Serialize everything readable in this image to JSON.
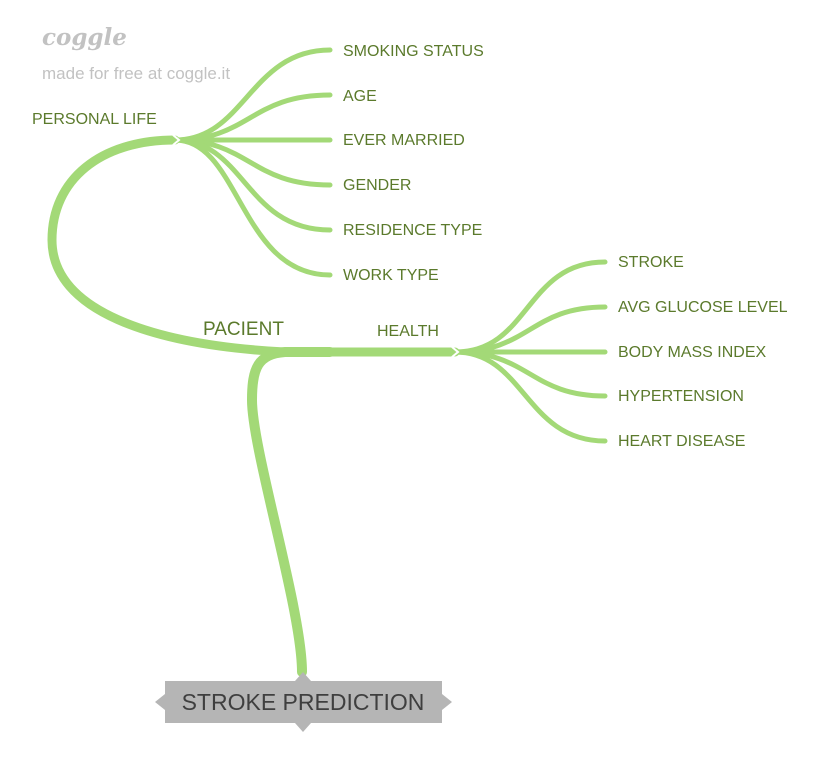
{
  "watermark": {
    "logo": "coggle",
    "caption": "made for free at coggle.it"
  },
  "root": {
    "label": "STROKE PREDICTION",
    "box_color": "#b5b5b5"
  },
  "hub": {
    "label": "PACIENT"
  },
  "branch_color": "#a3d977",
  "label_color": "#5b7a2c",
  "branches": {
    "personal": {
      "label": "PERSONAL LIFE",
      "children": [
        "SMOKING STATUS",
        "AGE",
        "EVER MARRIED",
        "GENDER",
        "RESIDENCE TYPE",
        "WORK TYPE"
      ]
    },
    "health": {
      "label": "HEALTH",
      "children": [
        "STROKE",
        "AVG GLUCOSE LEVEL",
        "BODY MASS INDEX",
        "HYPERTENSION",
        "HEART DISEASE"
      ]
    }
  }
}
